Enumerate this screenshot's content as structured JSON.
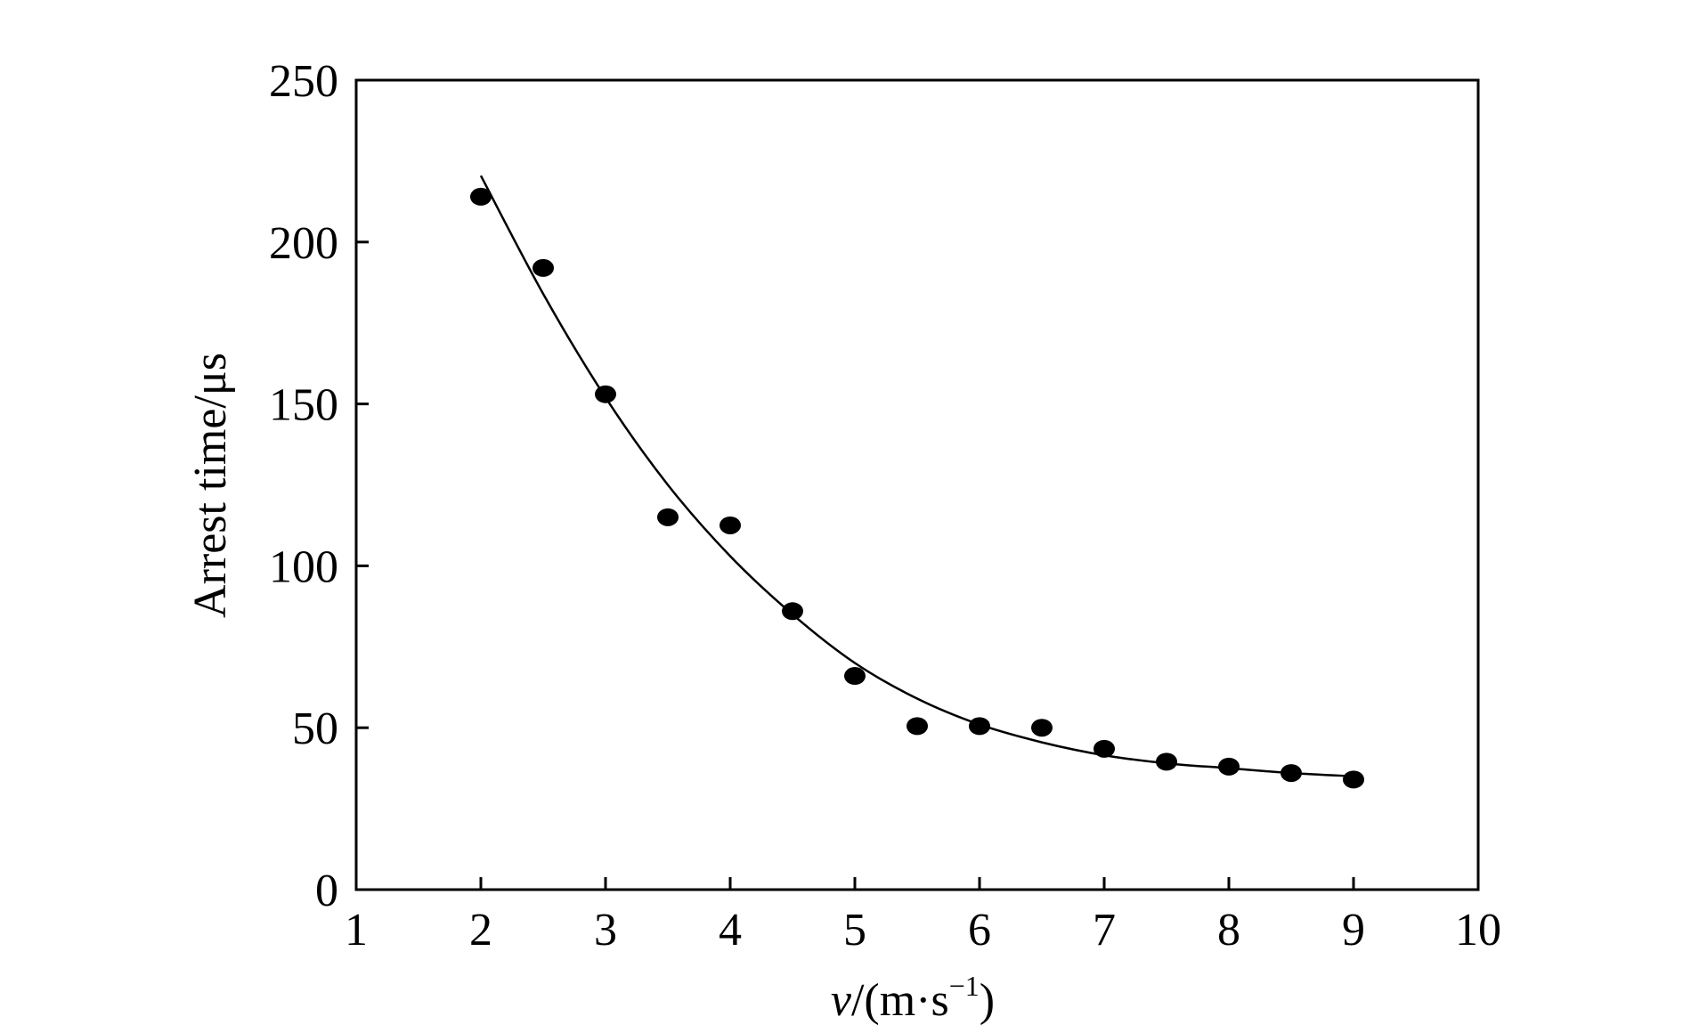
{
  "chart_data": {
    "type": "scatter",
    "title": "",
    "xlabel": {
      "var": "v",
      "unit_open": "/(m·s",
      "unit_sup": "−1",
      "unit_close": ")"
    },
    "ylabel": "Arrest time/μs",
    "xlim": [
      1,
      10
    ],
    "ylim": [
      0,
      250
    ],
    "xticks": [
      "1",
      "2",
      "3",
      "4",
      "5",
      "6",
      "7",
      "8",
      "9",
      "10"
    ],
    "yticks": [
      "0",
      "50",
      "100",
      "150",
      "200",
      "250"
    ],
    "grid": false,
    "legend": "none",
    "series": [
      {
        "kind": "markers",
        "color": "#000000",
        "x": [
          2,
          2.5,
          3,
          3.5,
          4,
          4.5,
          5,
          5.5,
          6,
          6.5,
          7,
          7.5,
          8,
          8.5,
          9
        ],
        "y": [
          214,
          192,
          153,
          115,
          112.5,
          86,
          66,
          50.5,
          50.5,
          50,
          43.5,
          39.5,
          38,
          36,
          34
        ]
      },
      {
        "kind": "fitted-curve",
        "color": "#000000",
        "x": [
          2,
          2.5,
          3,
          3.5,
          4,
          4.5,
          5,
          5.5,
          6,
          6.5,
          7,
          7.5,
          8,
          8.5,
          9
        ],
        "y": [
          220.5,
          184,
          152,
          125,
          103,
          85,
          70,
          59,
          51,
          45.5,
          41.5,
          39,
          37.5,
          36,
          35
        ]
      }
    ]
  }
}
